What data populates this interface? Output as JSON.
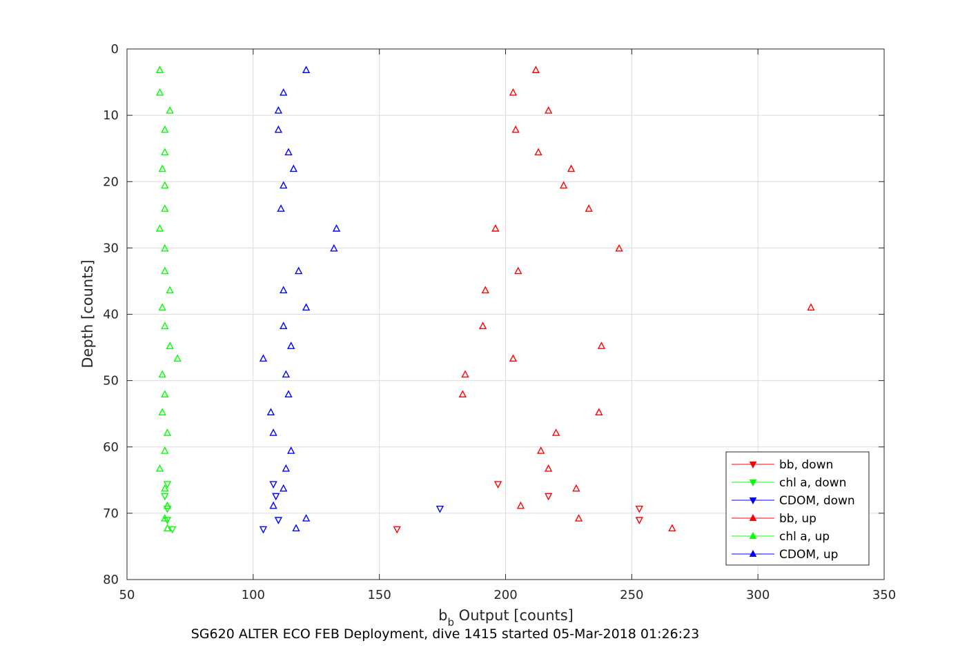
{
  "chart_data": {
    "type": "scatter",
    "footer": "SG620 ALTER ECO FEB Deployment, dive 1415 started 05-Mar-2018 01:26:23",
    "xlabel_main": "b",
    "xlabel_sub": "b",
    "xlabel_rest": " Output [counts]",
    "ylabel": "Depth [counts]",
    "xlim": [
      50,
      350
    ],
    "ylim": [
      0,
      80
    ],
    "y_reversed": true,
    "grid": true,
    "xticks": [
      50,
      100,
      150,
      200,
      250,
      300,
      350
    ],
    "yticks": [
      0,
      10,
      20,
      30,
      40,
      50,
      60,
      70,
      80
    ],
    "legend_position": "bottom-right",
    "series": [
      {
        "name": "bb, down",
        "color": "#ff0000",
        "marker": "down",
        "points": [
          [
            197,
            65.6
          ],
          [
            217,
            67.4
          ],
          [
            253,
            69.3
          ],
          [
            253,
            71.0
          ],
          [
            157,
            72.4
          ]
        ]
      },
      {
        "name": "chl a, down",
        "color": "#00ff00",
        "marker": "down",
        "points": [
          [
            66,
            65.6
          ],
          [
            65,
            67.4
          ],
          [
            66,
            69.3
          ],
          [
            66,
            71.0
          ],
          [
            68,
            72.4
          ]
        ]
      },
      {
        "name": "CDOM, down",
        "color": "#0000ff",
        "marker": "down",
        "points": [
          [
            108,
            65.6
          ],
          [
            109,
            67.4
          ],
          [
            174,
            69.3
          ],
          [
            110,
            71.0
          ],
          [
            104,
            72.4
          ]
        ]
      },
      {
        "name": "bb, up",
        "color": "#ff0000",
        "marker": "up",
        "points": [
          [
            212,
            3.2
          ],
          [
            203,
            6.6
          ],
          [
            217,
            9.3
          ],
          [
            204,
            12.2
          ],
          [
            213,
            15.6
          ],
          [
            226,
            18.1
          ],
          [
            223,
            20.6
          ],
          [
            233,
            24.1
          ],
          [
            196,
            27.1
          ],
          [
            245,
            30.1
          ],
          [
            205,
            33.5
          ],
          [
            192,
            36.4
          ],
          [
            321,
            39.0
          ],
          [
            191,
            41.8
          ],
          [
            238,
            44.8
          ],
          [
            203,
            46.7
          ],
          [
            184,
            49.1
          ],
          [
            183,
            52.1
          ],
          [
            237,
            54.8
          ],
          [
            220,
            57.9
          ],
          [
            214,
            60.6
          ],
          [
            217,
            63.3
          ],
          [
            228,
            66.3
          ],
          [
            206,
            68.9
          ],
          [
            229,
            70.8
          ],
          [
            266,
            72.3
          ]
        ]
      },
      {
        "name": "chl a, up",
        "color": "#00ff00",
        "marker": "up",
        "points": [
          [
            63,
            3.2
          ],
          [
            63,
            6.6
          ],
          [
            67,
            9.3
          ],
          [
            65,
            12.2
          ],
          [
            65,
            15.6
          ],
          [
            64,
            18.1
          ],
          [
            65,
            20.6
          ],
          [
            65,
            24.1
          ],
          [
            63,
            27.1
          ],
          [
            65,
            30.1
          ],
          [
            65,
            33.5
          ],
          [
            67,
            36.4
          ],
          [
            64,
            39.0
          ],
          [
            65,
            41.8
          ],
          [
            67,
            44.8
          ],
          [
            70,
            46.7
          ],
          [
            64,
            49.1
          ],
          [
            65,
            52.1
          ],
          [
            64,
            54.8
          ],
          [
            66,
            57.9
          ],
          [
            65,
            60.6
          ],
          [
            63,
            63.3
          ],
          [
            65,
            66.3
          ],
          [
            66,
            68.9
          ],
          [
            65,
            70.8
          ],
          [
            66,
            72.3
          ]
        ]
      },
      {
        "name": "CDOM, up",
        "color": "#0000ff",
        "marker": "up",
        "points": [
          [
            121,
            3.2
          ],
          [
            112,
            6.6
          ],
          [
            110,
            9.3
          ],
          [
            110,
            12.2
          ],
          [
            114,
            15.6
          ],
          [
            116,
            18.1
          ],
          [
            112,
            20.6
          ],
          [
            111,
            24.1
          ],
          [
            133,
            27.1
          ],
          [
            132,
            30.1
          ],
          [
            118,
            33.5
          ],
          [
            112,
            36.4
          ],
          [
            121,
            39.0
          ],
          [
            112,
            41.8
          ],
          [
            115,
            44.8
          ],
          [
            104,
            46.7
          ],
          [
            113,
            49.1
          ],
          [
            114,
            52.1
          ],
          [
            107,
            54.8
          ],
          [
            108,
            57.9
          ],
          [
            115,
            60.6
          ],
          [
            113,
            63.3
          ],
          [
            112,
            66.3
          ],
          [
            108,
            68.9
          ],
          [
            121,
            70.8
          ],
          [
            117,
            72.3
          ]
        ]
      }
    ]
  }
}
